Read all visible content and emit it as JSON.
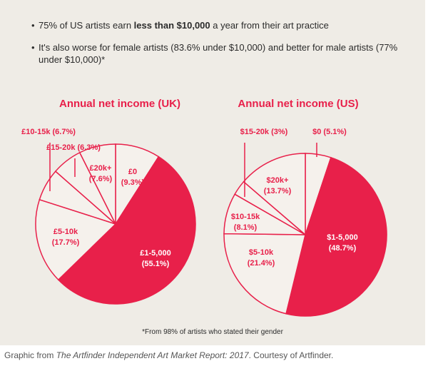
{
  "bullets": [
    {
      "pre": "75% of US artists earn ",
      "bold": "less than $10,000",
      "post": " a year from their art practice"
    },
    {
      "pre": "It's also worse for female artists (83.6% under $10,000) and better for male artists (77% under $10,000)*",
      "bold": "",
      "post": ""
    }
  ],
  "footnote": "*From 98% of artists who stated their gender",
  "caption": {
    "pre": "Graphic from ",
    "italic": "The Artfinder Independent Art Market Report: 2017",
    "post": ". Courtesy of Artfinder."
  },
  "colors": {
    "accent": "#e8204a",
    "light": "#f5f1ec",
    "background": "#efece6"
  },
  "chart_data": [
    {
      "type": "pie",
      "title": "Annual net income (UK)",
      "slices": [
        {
          "label": "£0",
          "value": 9.3,
          "text": "£0\n(9.3%)"
        },
        {
          "label": "£1-5,000",
          "value": 55.1,
          "text": "£1-5,000\n(55.1%)"
        },
        {
          "label": "£5-10k",
          "value": 17.7,
          "text": "£5-10k\n(17.7%)"
        },
        {
          "label": "£10-15k",
          "value": 6.7,
          "text": "£10-15k (6.7%)"
        },
        {
          "label": "£15-20k",
          "value": 6.3,
          "text": "£15-20k (6.3%)"
        },
        {
          "label": "£20k+",
          "value": 7.6,
          "text": "£20k+\n(7.6%)"
        }
      ],
      "highlight": "£1-5,000"
    },
    {
      "type": "pie",
      "title": "Annual net income (US)",
      "slices": [
        {
          "label": "$0",
          "value": 5.1,
          "text": "$0 (5.1%)"
        },
        {
          "label": "$1-5,000",
          "value": 48.7,
          "text": "$1-5,000\n(48.7%)"
        },
        {
          "label": "$5-10k",
          "value": 21.4,
          "text": "$5-10k\n(21.4%)"
        },
        {
          "label": "$10-15k",
          "value": 8.1,
          "text": "$10-15k\n(8.1%)"
        },
        {
          "label": "$15-20k",
          "value": 3,
          "text": "$15-20k (3%)"
        },
        {
          "label": "$20k+",
          "value": 13.7,
          "text": "$20k+\n(13.7%)"
        }
      ],
      "highlight": "$1-5,000"
    }
  ]
}
